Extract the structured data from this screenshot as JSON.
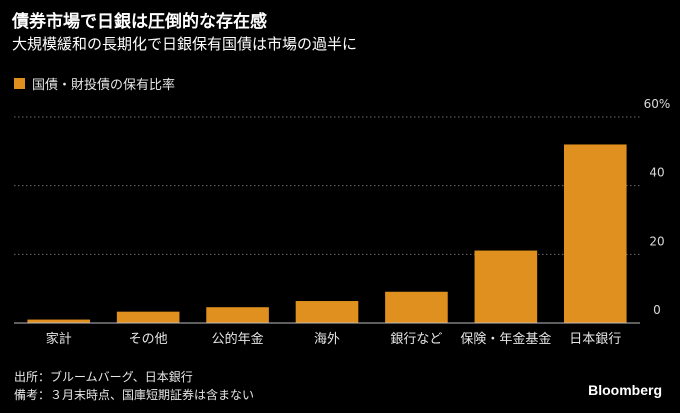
{
  "chart_data": {
    "type": "bar",
    "title": "債券市場で日銀は圧倒的な存在感",
    "subtitle": "大規模緩和の長期化で日銀保有国債は市場の過半に",
    "legend": {
      "label": "国債・財投債の保有比率",
      "placement": "top-left"
    },
    "categories": [
      "家計",
      "その他",
      "公的年金",
      "海外",
      "銀行など",
      "保険・年金基金",
      "日本銀行"
    ],
    "values": [
      1.0,
      3.3,
      4.6,
      6.4,
      9.1,
      21.1,
      52.0
    ],
    "ylim": [
      0,
      60
    ],
    "yticks": [
      0,
      20,
      40,
      60
    ],
    "ytick_labels": [
      "0",
      "20",
      "40",
      "60%"
    ],
    "grid": true,
    "y_axis_side": "right"
  },
  "colors": {
    "bar": "#E0901E",
    "background": "#000000",
    "grid": "#6b6b6b"
  },
  "footer": {
    "source": "出所：ブルームバーグ、日本銀行",
    "note": "備考：３月末時点、国庫短期証券は含まない"
  },
  "brand": "Bloomberg"
}
